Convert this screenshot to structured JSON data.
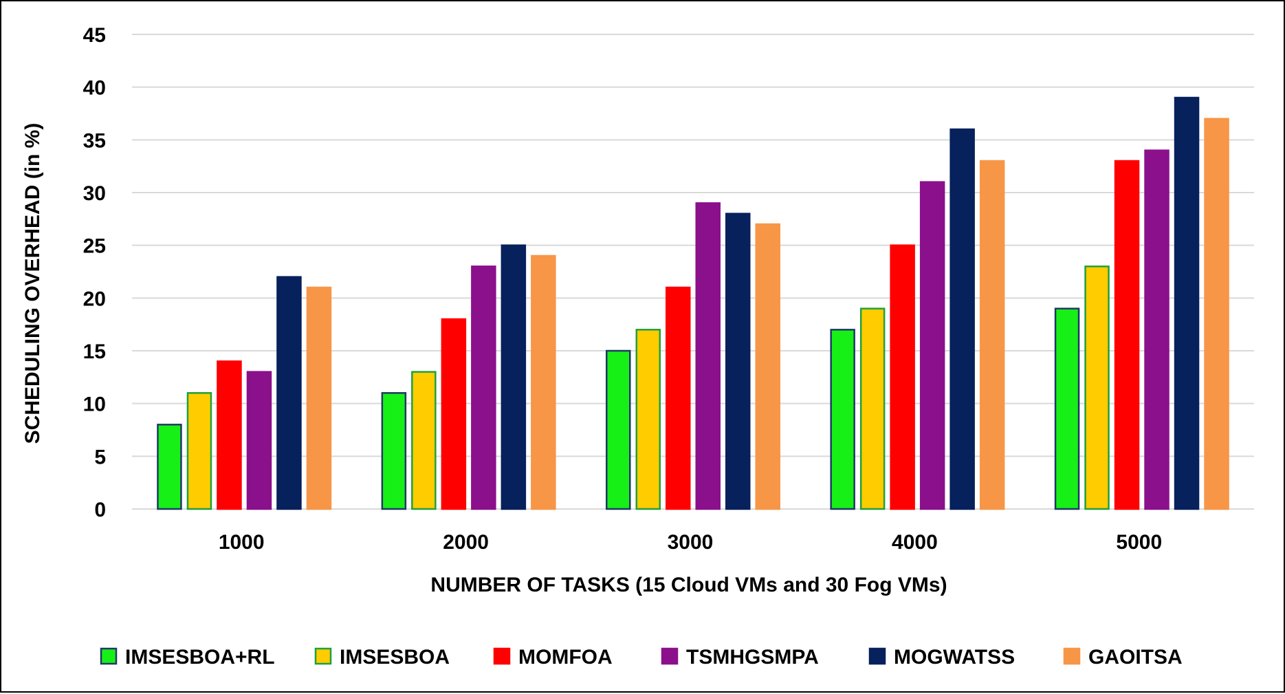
{
  "chart_data": {
    "type": "bar",
    "title": "",
    "xlabel": "NUMBER OF TASKS (15 Cloud VMs and 30 Fog VMs)",
    "ylabel": "SCHEDULING OVERHEAD  (in %)",
    "ylim": [
      0,
      45
    ],
    "yticks": [
      0,
      5,
      10,
      15,
      20,
      25,
      30,
      35,
      40,
      45
    ],
    "grid": true,
    "legend_position": "bottom",
    "categories": [
      "1000",
      "2000",
      "3000",
      "4000",
      "5000"
    ],
    "series": [
      {
        "name": "IMSESBOA+RL",
        "color": "#17F017",
        "border": "#1F3864",
        "values": [
          8,
          11,
          15,
          17,
          19
        ]
      },
      {
        "name": "IMSESBOA",
        "color": "#FFCC00",
        "border": "#1FA03C",
        "values": [
          11,
          13,
          17,
          19,
          23
        ]
      },
      {
        "name": "MOMFOA",
        "color": "#FF0000",
        "border": "#FF0000",
        "values": [
          14,
          18,
          21,
          25,
          33
        ]
      },
      {
        "name": "TSMHGSMPA",
        "color": "#8B108B",
        "border": "#8B108B",
        "values": [
          13,
          23,
          29,
          31,
          34
        ]
      },
      {
        "name": "MOGWATSS",
        "color": "#06215C",
        "border": "#06215C",
        "values": [
          22,
          25,
          28,
          36,
          39
        ]
      },
      {
        "name": "GAOITSA",
        "color": "#F79646",
        "border": "#F79646",
        "values": [
          21,
          24,
          27,
          33,
          37
        ]
      }
    ]
  }
}
